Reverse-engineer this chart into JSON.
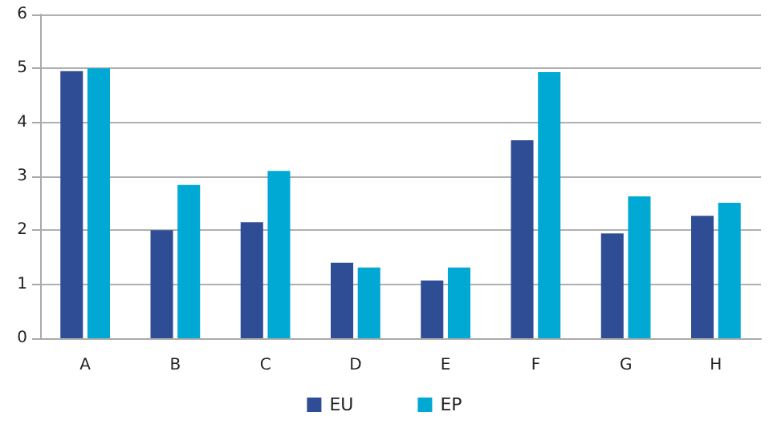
{
  "chart_data": {
    "type": "bar",
    "categories": [
      "A",
      "B",
      "C",
      "D",
      "E",
      "F",
      "G",
      "H"
    ],
    "series": [
      {
        "name": "EU",
        "color": "#2e4d95",
        "values": [
          4.95,
          2.0,
          2.15,
          1.4,
          1.07,
          3.67,
          1.94,
          2.27
        ]
      },
      {
        "name": "EP",
        "color": "#00a9d4",
        "values": [
          5.0,
          2.84,
          3.1,
          1.31,
          1.31,
          4.93,
          2.63,
          2.51
        ]
      }
    ],
    "ylim": [
      0,
      6
    ],
    "yticks": [
      0,
      1,
      2,
      3,
      4,
      5,
      6
    ],
    "grid": "y",
    "legend": "bottom"
  }
}
